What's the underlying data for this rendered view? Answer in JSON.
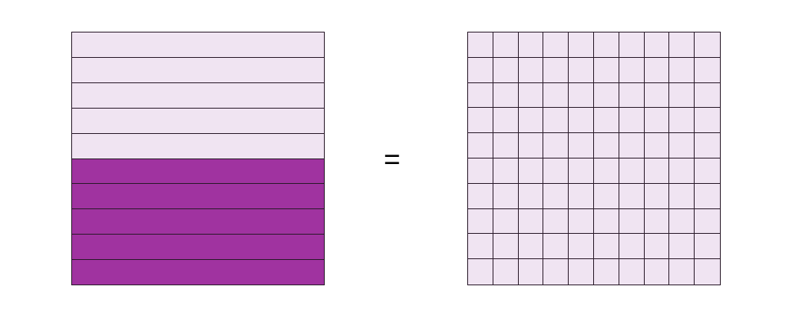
{
  "left_model": {
    "total_rows": 10,
    "shaded_rows": 5,
    "shaded_position": "bottom",
    "shaded_color": "#a033a0",
    "unshaded_color": "#f0e4f2"
  },
  "equals": {
    "symbol": "="
  },
  "right_model": {
    "rows": 10,
    "columns": 10,
    "shaded_cells": 0,
    "unshaded_color": "#f0e4f2",
    "shaded_color": "#a033a0"
  },
  "colors": {
    "outline": "#2a1a2a"
  }
}
